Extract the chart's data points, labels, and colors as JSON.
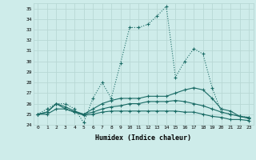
{
  "xlabel": "Humidex (Indice chaleur)",
  "background_color": "#ceecea",
  "grid_color": "#b8d8d5",
  "line_color": "#1a6b65",
  "xlim": [
    -0.5,
    23.5
  ],
  "ylim": [
    24,
    35.5
  ],
  "xticks": [
    0,
    1,
    2,
    3,
    4,
    5,
    6,
    7,
    8,
    9,
    10,
    11,
    12,
    13,
    14,
    15,
    16,
    17,
    18,
    19,
    20,
    21,
    22,
    23
  ],
  "yticks": [
    24,
    25,
    26,
    27,
    28,
    29,
    30,
    31,
    32,
    33,
    34,
    35
  ],
  "series": [
    [
      25.0,
      25.5,
      26.0,
      26.0,
      25.5,
      24.2,
      26.5,
      28.0,
      26.5,
      29.8,
      33.2,
      33.2,
      33.5,
      34.3,
      35.2,
      28.5,
      30.0,
      31.2,
      30.7,
      27.5,
      25.2,
      25.0,
      24.8,
      24.7
    ],
    [
      25.0,
      25.2,
      26.0,
      25.7,
      25.3,
      25.0,
      25.5,
      26.0,
      26.3,
      26.5,
      26.5,
      26.5,
      26.7,
      26.7,
      26.7,
      27.0,
      27.3,
      27.5,
      27.3,
      26.5,
      25.5,
      25.3,
      24.8,
      24.7
    ],
    [
      25.0,
      25.2,
      26.0,
      25.5,
      25.2,
      25.0,
      25.2,
      25.5,
      25.7,
      25.8,
      26.0,
      26.0,
      26.2,
      26.2,
      26.2,
      26.3,
      26.2,
      26.0,
      25.8,
      25.5,
      25.2,
      25.0,
      24.8,
      24.6
    ],
    [
      25.0,
      25.0,
      25.5,
      25.5,
      25.2,
      24.9,
      25.0,
      25.2,
      25.3,
      25.3,
      25.3,
      25.3,
      25.3,
      25.3,
      25.3,
      25.3,
      25.2,
      25.2,
      25.0,
      24.8,
      24.7,
      24.5,
      24.5,
      24.4
    ]
  ],
  "line_styles": [
    "dotted",
    "solid",
    "solid",
    "solid"
  ],
  "markersize": [
    3,
    3,
    3,
    3
  ]
}
